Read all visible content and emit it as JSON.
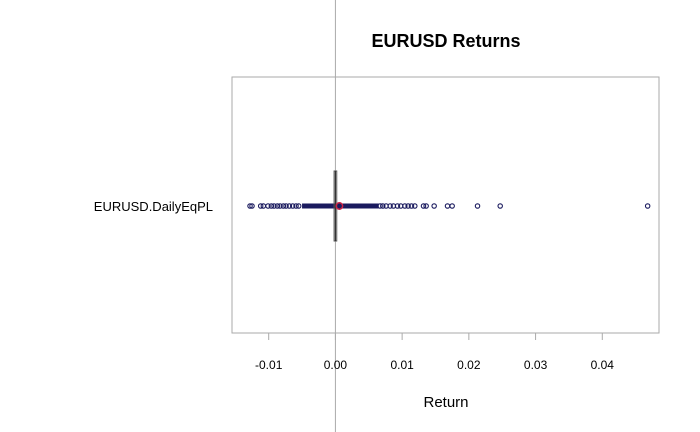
{
  "chart_data": {
    "type": "box",
    "title": "EURUSD Returns",
    "xlabel": "Return",
    "ylabel": "",
    "xlim": [
      -0.0155,
      0.0485
    ],
    "x_ticks": [
      -0.01,
      0.0,
      0.01,
      0.02,
      0.03,
      0.04
    ],
    "x_tick_labels": [
      "-0.01",
      "0.00",
      "0.01",
      "0.02",
      "0.03",
      "0.04"
    ],
    "reference_line": 0.0,
    "categories": [
      "EURUSD.DailyEqPL"
    ],
    "box": {
      "q1": -0.0002,
      "median": 0.0,
      "q3": 0.0002,
      "mean": 0.0006,
      "whisker_low": -0.005,
      "whisker_high": 0.0065
    },
    "outliers": [
      -0.0128,
      -0.0125,
      -0.0112,
      -0.0108,
      -0.0101,
      -0.0096,
      -0.0092,
      -0.0087,
      -0.0083,
      -0.0078,
      -0.0074,
      -0.0069,
      -0.0064,
      -0.0059,
      -0.0055,
      0.0067,
      0.0071,
      0.0076,
      0.0082,
      0.0087,
      0.0093,
      0.0098,
      0.0104,
      0.0109,
      0.0114,
      0.0119,
      0.0132,
      0.0136,
      0.0148,
      0.0168,
      0.0175,
      0.0213,
      0.0247,
      0.0468
    ],
    "colors": {
      "points": "#1a1a5e",
      "mean": "#cc2244",
      "frame": "#aaaaaa",
      "ref_line": "#aaaaaa"
    },
    "grid": false
  }
}
